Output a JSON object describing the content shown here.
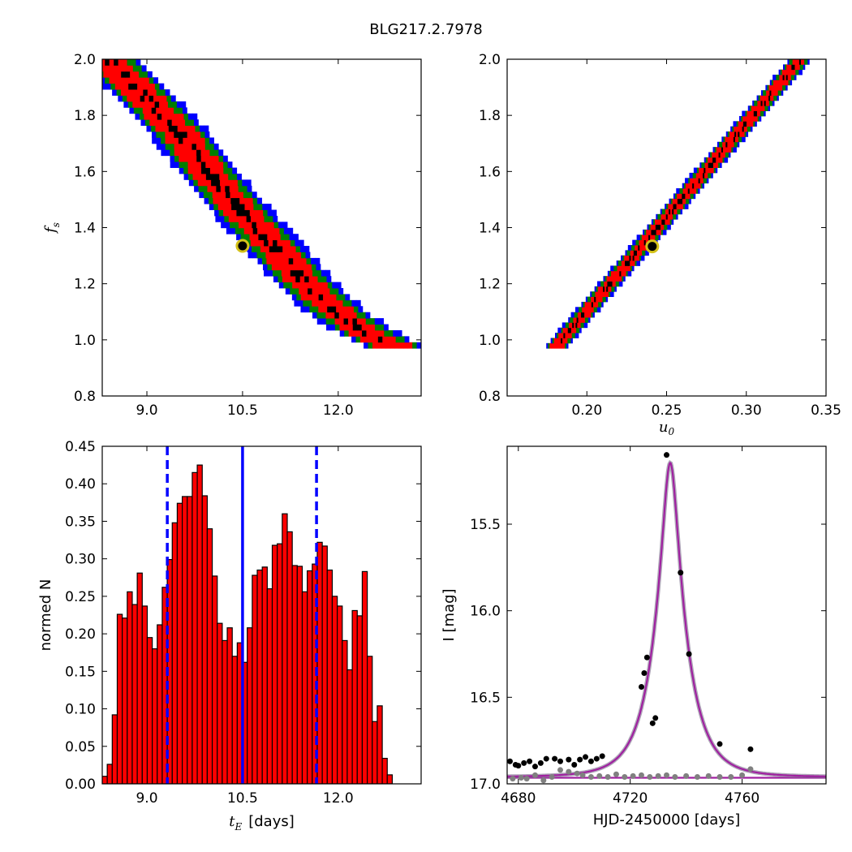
{
  "title": "BLG217.2.7978",
  "chart_data": [
    {
      "type": "heatmap",
      "panel": "top-left",
      "xlabel": "",
      "ylabel_main": "f",
      "ylabel_sub": "s",
      "xlim": [
        8.3,
        13.3
      ],
      "ylim": [
        0.8,
        2.0
      ],
      "xticks": [
        9.0,
        10.5,
        12.0
      ],
      "xtick_labels": [
        "9.0",
        "10.5",
        "12.0"
      ],
      "yticks": [
        0.8,
        1.0,
        1.2,
        1.4,
        1.6,
        1.8,
        2.0
      ],
      "ytick_labels": [
        "0.8",
        "1.0",
        "1.2",
        "1.4",
        "1.6",
        "1.8",
        "2.0"
      ],
      "ridge": [
        [
          8.4,
          2.0
        ],
        [
          9.0,
          1.86
        ],
        [
          9.5,
          1.74
        ],
        [
          10.0,
          1.59
        ],
        [
          10.5,
          1.455
        ],
        [
          11.0,
          1.33
        ],
        [
          11.5,
          1.2
        ],
        [
          12.0,
          1.095
        ],
        [
          12.5,
          1.02
        ],
        [
          12.9,
          0.975
        ]
      ],
      "best_fit": {
        "x": 10.5,
        "y": 1.335
      },
      "band_colors": [
        "#0000ff",
        "#007f00",
        "#ff0000",
        "#000000"
      ]
    },
    {
      "type": "heatmap",
      "panel": "top-right",
      "xlabel_main": "u",
      "xlabel_sub": "0",
      "xlim": [
        0.15,
        0.35
      ],
      "ylim": [
        0.8,
        2.0
      ],
      "xticks": [
        0.2,
        0.25,
        0.3,
        0.35
      ],
      "xtick_labels": [
        "0.20",
        "0.25",
        "0.30",
        "0.35"
      ],
      "yticks": [
        0.8,
        1.0,
        1.2,
        1.4,
        1.6,
        1.8,
        2.0
      ],
      "ytick_labels": [
        "0.8",
        "1.0",
        "1.2",
        "1.4",
        "1.6",
        "1.8",
        "2.0"
      ],
      "ridge": [
        [
          0.18,
          0.97
        ],
        [
          0.334,
          2.0
        ]
      ],
      "best_fit": {
        "x": 0.241,
        "y": 1.333
      },
      "band_colors": [
        "#0000ff",
        "#007f00",
        "#ff0000",
        "#000000"
      ]
    },
    {
      "type": "bar",
      "panel": "bottom-left",
      "xlabel_main": "t",
      "xlabel_sub": "E",
      "xlabel_unit": "[days]",
      "ylabel": "normed N",
      "xlim": [
        8.3,
        13.3
      ],
      "ylim": [
        0.0,
        0.45
      ],
      "xticks": [
        9.0,
        10.5,
        12.0
      ],
      "xtick_labels": [
        "9.0",
        "10.5",
        "12.0"
      ],
      "yticks": [
        0.0,
        0.05,
        0.1,
        0.15,
        0.2,
        0.25,
        0.3,
        0.35,
        0.4,
        0.45
      ],
      "ytick_labels": [
        "0.00",
        "0.05",
        "0.10",
        "0.15",
        "0.20",
        "0.25",
        "0.30",
        "0.35",
        "0.40",
        "0.45"
      ],
      "bin_start": 8.3,
      "bin_width": 0.0784,
      "values": [
        0.01,
        0.026,
        0.092,
        0.226,
        0.221,
        0.256,
        0.239,
        0.281,
        0.237,
        0.195,
        0.18,
        0.212,
        0.262,
        0.299,
        0.348,
        0.374,
        0.383,
        0.383,
        0.415,
        0.425,
        0.384,
        0.34,
        0.277,
        0.214,
        0.191,
        0.208,
        0.17,
        0.188,
        0.162,
        0.208,
        0.278,
        0.285,
        0.289,
        0.26,
        0.318,
        0.32,
        0.36,
        0.336,
        0.291,
        0.29,
        0.256,
        0.284,
        0.293,
        0.322,
        0.317,
        0.285,
        0.25,
        0.237,
        0.191,
        0.152,
        0.231,
        0.224,
        0.283,
        0.17,
        0.083,
        0.104,
        0.034,
        0.012
      ],
      "vlines": [
        {
          "x": 9.32,
          "style": "dashed"
        },
        {
          "x": 10.5,
          "style": "solid"
        },
        {
          "x": 11.66,
          "style": "dashed"
        }
      ],
      "bar_color": "#ff0000",
      "line_color": "#0000ff"
    },
    {
      "type": "line",
      "panel": "bottom-right",
      "xlabel": "HJD-2450000 [days]",
      "ylabel": "I [mag]",
      "xlim": [
        4676,
        4790
      ],
      "ylim": [
        17.0,
        15.05
      ],
      "inverted_y": true,
      "xticks": [
        4680,
        4720,
        4760
      ],
      "xtick_labels": [
        "4680",
        "4720",
        "4760"
      ],
      "yticks": [
        15.5,
        16.0,
        16.5,
        17.0
      ],
      "ytick_labels": [
        "15.5",
        "16.0",
        "16.5",
        "17.0"
      ],
      "model": {
        "t0": 4734.3,
        "tE": 10.5,
        "u0": 0.241,
        "fs": 1.333,
        "baseline": 16.96
      },
      "series": [
        {
          "color": "#000000",
          "x": [
            4677,
            4679,
            4680,
            4682,
            4684,
            4686,
            4688,
            4690,
            4693,
            4695,
            4698,
            4700,
            4702,
            4704,
            4706,
            4708,
            4710,
            4724,
            4725,
            4726,
            4728,
            4729,
            4733,
            4738,
            4741,
            4752,
            4763
          ],
          "y": [
            16.87,
            16.89,
            16.895,
            16.88,
            16.87,
            16.9,
            16.88,
            16.855,
            16.855,
            16.87,
            16.86,
            16.89,
            16.86,
            16.845,
            16.87,
            16.855,
            16.84,
            16.44,
            16.36,
            16.27,
            16.65,
            16.62,
            15.1,
            15.78,
            16.25,
            16.77,
            16.8
          ]
        },
        {
          "color": "#808080",
          "x": [
            4678,
            4681,
            4683,
            4686,
            4689,
            4692,
            4695,
            4698,
            4701,
            4703,
            4706,
            4709,
            4712,
            4715,
            4718,
            4721,
            4724,
            4727,
            4730,
            4733,
            4736,
            4740,
            4744,
            4748,
            4752,
            4756,
            4760,
            4763
          ],
          "y": [
            16.97,
            16.965,
            16.97,
            16.95,
            16.98,
            16.96,
            16.92,
            16.93,
            16.94,
            16.95,
            16.96,
            16.955,
            16.96,
            16.945,
            16.96,
            16.955,
            16.95,
            16.96,
            16.955,
            16.95,
            16.96,
            16.955,
            16.96,
            16.955,
            16.96,
            16.96,
            16.95,
            16.915
          ]
        }
      ],
      "model_color": "#a020a0"
    }
  ]
}
